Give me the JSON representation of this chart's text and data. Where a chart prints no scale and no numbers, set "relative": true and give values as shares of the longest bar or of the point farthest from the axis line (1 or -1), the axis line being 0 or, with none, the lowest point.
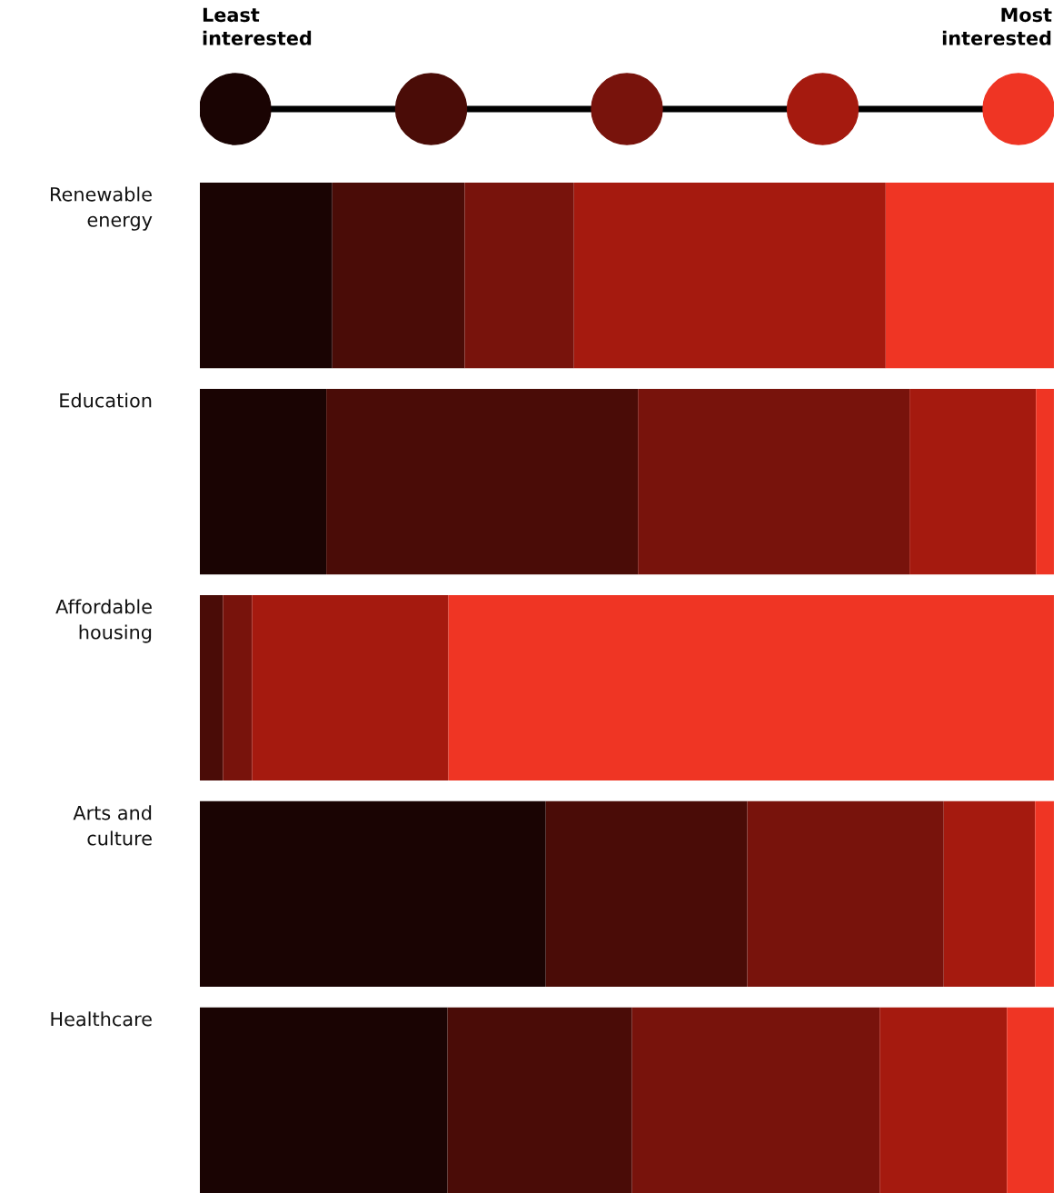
{
  "chart_data": {
    "type": "bar",
    "orientation": "horizontal",
    "stacked": true,
    "relative": true,
    "categories": [
      "Renewable\nenergy",
      "Education",
      "Affordable\nhousing",
      "Arts and\nculture",
      "Healthcare"
    ],
    "series": [
      {
        "color": "#1a0403",
        "values": [
          0.155,
          0.148,
          0,
          0.405,
          0.29
        ]
      },
      {
        "color": "#4a0c07",
        "values": [
          0.155,
          0.365,
          0.027,
          0.236,
          0.216
        ]
      },
      {
        "color": "#78130c",
        "values": [
          0.128,
          0.318,
          0.034,
          0.23,
          0.29
        ]
      },
      {
        "color": "#a51a0f",
        "values": [
          0.365,
          0.148,
          0.23,
          0.107,
          0.149
        ]
      },
      {
        "color": "#ef3524",
        "values": [
          0.197,
          0.021,
          0.709,
          0.022,
          0.055
        ]
      }
    ],
    "annotations": [
      "Least\ninterested",
      "Most\ninterested"
    ]
  }
}
